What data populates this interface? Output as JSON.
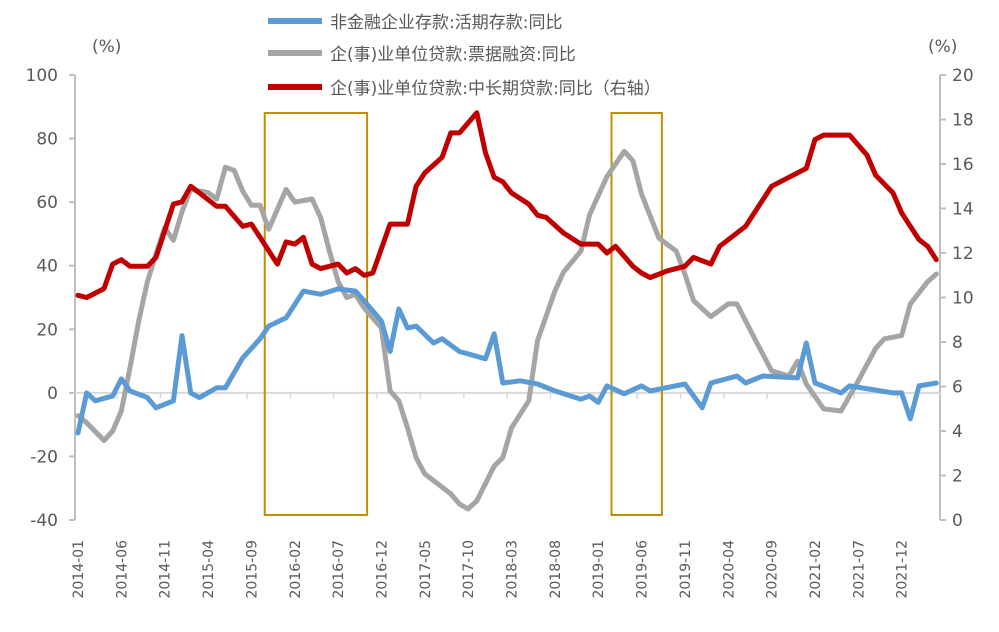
{
  "chart_data": {
    "type": "line",
    "left_axis": {
      "label": "(%)",
      "ylim": [
        -40,
        100
      ],
      "ticks": [
        100,
        80,
        60,
        40,
        20,
        0,
        -20,
        -40
      ]
    },
    "right_axis": {
      "label": "(%)",
      "ylim": [
        0,
        20
      ],
      "ticks": [
        20,
        18,
        16,
        14,
        12,
        10,
        8,
        6,
        4,
        2,
        0
      ]
    },
    "x_tick_labels": [
      "2014-01",
      "2014-06",
      "2014-11",
      "2015-04",
      "2015-09",
      "2016-02",
      "2016-07",
      "2016-12",
      "2017-05",
      "2017-10",
      "2018-03",
      "2018-08",
      "2019-01",
      "2019-06",
      "2019-11",
      "2020-04",
      "2020-09",
      "2021-02",
      "2021-07",
      "2021-12"
    ],
    "x_start": "2014-01",
    "grid": false,
    "legend_position": "top",
    "series": [
      {
        "name": "非金融企业存款:活期存款:同比",
        "axis": "left",
        "color": "#5B9BD5",
        "points": [
          [
            "2014-01",
            -12.6
          ],
          [
            "2014-02",
            0
          ],
          [
            "2014-03",
            -2.5
          ],
          [
            "2014-05",
            -1
          ],
          [
            "2014-06",
            4.4
          ],
          [
            "2014-07",
            0.6
          ],
          [
            "2014-09",
            -1.5
          ],
          [
            "2014-10",
            -4.7
          ],
          [
            "2014-12",
            -2.5
          ],
          [
            "2015-01",
            18
          ],
          [
            "2015-02",
            0
          ],
          [
            "2015-03",
            -1.5
          ],
          [
            "2015-05",
            1.6
          ],
          [
            "2015-06",
            1.6
          ],
          [
            "2015-08",
            11
          ],
          [
            "2015-10",
            17
          ],
          [
            "2015-11",
            21
          ],
          [
            "2016-01",
            23.6
          ],
          [
            "2016-03",
            32
          ],
          [
            "2016-05",
            31
          ],
          [
            "2016-07",
            32.7
          ],
          [
            "2016-09",
            32
          ],
          [
            "2016-10",
            29
          ],
          [
            "2016-12",
            22.6
          ],
          [
            "2017-01",
            13
          ],
          [
            "2017-02",
            26.4
          ],
          [
            "2017-03",
            20.4
          ],
          [
            "2017-04",
            21
          ],
          [
            "2017-06",
            15.7
          ],
          [
            "2017-07",
            17
          ],
          [
            "2017-09",
            13
          ],
          [
            "2017-12",
            10.7
          ],
          [
            "2018-01",
            18.6
          ],
          [
            "2018-02",
            3.1
          ],
          [
            "2018-04",
            3.8
          ],
          [
            "2018-06",
            2.8
          ],
          [
            "2018-08",
            0.6
          ],
          [
            "2018-11",
            -2
          ],
          [
            "2018-12",
            -1
          ],
          [
            "2019-01",
            -3
          ],
          [
            "2019-02",
            2.2
          ],
          [
            "2019-04",
            -0.3
          ],
          [
            "2019-06",
            2.2
          ],
          [
            "2019-07",
            0.6
          ],
          [
            "2019-11",
            2.8
          ],
          [
            "2020-01",
            -4.7
          ],
          [
            "2020-02",
            3.1
          ],
          [
            "2020-05",
            5.3
          ],
          [
            "2020-06",
            3.1
          ],
          [
            "2020-08",
            5.3
          ],
          [
            "2020-12",
            4.7
          ],
          [
            "2021-01",
            15.7
          ],
          [
            "2021-02",
            3.1
          ],
          [
            "2021-05",
            0
          ],
          [
            "2021-06",
            2.2
          ],
          [
            "2021-11",
            0
          ],
          [
            "2021-12",
            0
          ],
          [
            "2022-01",
            -8.2
          ],
          [
            "2022-02",
            2.2
          ],
          [
            "2022-04",
            3.1
          ]
        ]
      },
      {
        "name": "企(事)业单位贷款:票据融资:同比",
        "axis": "left",
        "color": "#A5A5A5",
        "points": [
          [
            "2014-01",
            -7.2
          ],
          [
            "2014-02",
            -9.4
          ],
          [
            "2014-04",
            -15
          ],
          [
            "2014-05",
            -12
          ],
          [
            "2014-06",
            -5.7
          ],
          [
            "2014-07",
            7.9
          ],
          [
            "2014-08",
            22.6
          ],
          [
            "2014-09",
            35
          ],
          [
            "2014-10",
            43.7
          ],
          [
            "2014-11",
            52
          ],
          [
            "2014-12",
            48
          ],
          [
            "2015-01",
            57
          ],
          [
            "2015-02",
            64
          ],
          [
            "2015-04",
            63
          ],
          [
            "2015-05",
            61
          ],
          [
            "2015-06",
            71
          ],
          [
            "2015-07",
            70
          ],
          [
            "2015-08",
            63.5
          ],
          [
            "2015-09",
            59
          ],
          [
            "2015-10",
            59
          ],
          [
            "2015-11",
            51.5
          ],
          [
            "2016-01",
            64
          ],
          [
            "2016-02",
            60
          ],
          [
            "2016-04",
            61
          ],
          [
            "2016-05",
            55
          ],
          [
            "2016-06",
            44.6
          ],
          [
            "2016-07",
            35
          ],
          [
            "2016-08",
            30
          ],
          [
            "2016-09",
            31
          ],
          [
            "2016-10",
            26.7
          ],
          [
            "2016-12",
            20.4
          ],
          [
            "2017-01",
            0.6
          ],
          [
            "2017-02",
            -2.5
          ],
          [
            "2017-03",
            -11
          ],
          [
            "2017-04",
            -20.4
          ],
          [
            "2017-05",
            -25.5
          ],
          [
            "2017-08",
            -31.8
          ],
          [
            "2017-09",
            -35
          ],
          [
            "2017-10",
            -36.5
          ],
          [
            "2017-11",
            -34
          ],
          [
            "2018-01",
            -23
          ],
          [
            "2018-02",
            -20.4
          ],
          [
            "2018-03",
            -11
          ],
          [
            "2018-05",
            -2.5
          ],
          [
            "2018-06",
            16.4
          ],
          [
            "2018-08",
            32
          ],
          [
            "2018-09",
            38
          ],
          [
            "2018-11",
            44.6
          ],
          [
            "2018-12",
            56
          ],
          [
            "2019-02",
            68
          ],
          [
            "2019-04",
            76
          ],
          [
            "2019-05",
            73
          ],
          [
            "2019-06",
            62.6
          ],
          [
            "2019-08",
            48.7
          ],
          [
            "2019-10",
            44.6
          ],
          [
            "2019-11",
            37.4
          ],
          [
            "2019-12",
            29
          ],
          [
            "2020-02",
            24
          ],
          [
            "2020-04",
            28
          ],
          [
            "2020-05",
            28
          ],
          [
            "2020-07",
            17.3
          ],
          [
            "2020-09",
            6.9
          ],
          [
            "2020-11",
            5.3
          ],
          [
            "2020-12",
            10
          ],
          [
            "2021-01",
            2.8
          ],
          [
            "2021-03",
            -5
          ],
          [
            "2021-05",
            -5.7
          ],
          [
            "2021-07",
            3.8
          ],
          [
            "2021-09",
            14
          ],
          [
            "2021-10",
            17
          ],
          [
            "2021-12",
            18
          ],
          [
            "2022-01",
            28
          ],
          [
            "2022-03",
            35
          ],
          [
            "2022-04",
            37.4
          ]
        ]
      },
      {
        "name": "企(事)业单位贷款:中长期贷款:同比（右轴）",
        "axis": "right",
        "color": "#C00000",
        "points": [
          [
            "2014-01",
            10.1
          ],
          [
            "2014-02",
            10.0
          ],
          [
            "2014-04",
            10.4
          ],
          [
            "2014-05",
            11.5
          ],
          [
            "2014-06",
            11.7
          ],
          [
            "2014-07",
            11.4
          ],
          [
            "2014-09",
            11.4
          ],
          [
            "2014-10",
            11.8
          ],
          [
            "2014-12",
            14.2
          ],
          [
            "2015-01",
            14.3
          ],
          [
            "2015-02",
            15
          ],
          [
            "2015-03",
            14.7
          ],
          [
            "2015-05",
            14.1
          ],
          [
            "2015-06",
            14.1
          ],
          [
            "2015-08",
            13.2
          ],
          [
            "2015-09",
            13.3
          ],
          [
            "2015-10",
            12.7
          ],
          [
            "2015-12",
            11.5
          ],
          [
            "2016-01",
            12.5
          ],
          [
            "2016-02",
            12.4
          ],
          [
            "2016-03",
            12.7
          ],
          [
            "2016-04",
            11.5
          ],
          [
            "2016-05",
            11.3
          ],
          [
            "2016-07",
            11.5
          ],
          [
            "2016-08",
            11.1
          ],
          [
            "2016-09",
            11.3
          ],
          [
            "2016-10",
            11.0
          ],
          [
            "2016-11",
            11.1
          ],
          [
            "2017-01",
            13.3
          ],
          [
            "2017-02",
            13.3
          ],
          [
            "2017-03",
            13.3
          ],
          [
            "2017-04",
            15
          ],
          [
            "2017-05",
            15.6
          ],
          [
            "2017-07",
            16.3
          ],
          [
            "2017-08",
            17.4
          ],
          [
            "2017-09",
            17.4
          ],
          [
            "2017-11",
            18.3
          ],
          [
            "2017-12",
            16.5
          ],
          [
            "2018-01",
            15.4
          ],
          [
            "2018-02",
            15.2
          ],
          [
            "2018-03",
            14.7
          ],
          [
            "2018-05",
            14.2
          ],
          [
            "2018-06",
            13.7
          ],
          [
            "2018-07",
            13.6
          ],
          [
            "2018-09",
            12.9
          ],
          [
            "2018-11",
            12.4
          ],
          [
            "2019-01",
            12.4
          ],
          [
            "2019-02",
            12.0
          ],
          [
            "2019-03",
            12.3
          ],
          [
            "2019-05",
            11.4
          ],
          [
            "2019-06",
            11.1
          ],
          [
            "2019-07",
            10.9
          ],
          [
            "2019-09",
            11.2
          ],
          [
            "2019-11",
            11.4
          ],
          [
            "2019-12",
            11.8
          ],
          [
            "2020-02",
            11.5
          ],
          [
            "2020-03",
            12.3
          ],
          [
            "2020-06",
            13.2
          ],
          [
            "2020-07",
            13.8
          ],
          [
            "2020-09",
            15
          ],
          [
            "2020-11",
            15.4
          ],
          [
            "2021-01",
            15.8
          ],
          [
            "2021-02",
            17.1
          ],
          [
            "2021-03",
            17.3
          ],
          [
            "2021-06",
            17.3
          ],
          [
            "2021-08",
            16.4
          ],
          [
            "2021-09",
            15.5
          ],
          [
            "2021-11",
            14.7
          ],
          [
            "2021-12",
            13.8
          ],
          [
            "2022-02",
            12.6
          ],
          [
            "2022-03",
            12.3
          ],
          [
            "2022-04",
            11.7
          ]
        ]
      }
    ],
    "highlight_boxes": [
      {
        "from": "2015-11",
        "to": "2016-10",
        "color": "#BF9000"
      },
      {
        "from": "2019-03",
        "to": "2019-08",
        "color": "#BF9000"
      }
    ]
  }
}
